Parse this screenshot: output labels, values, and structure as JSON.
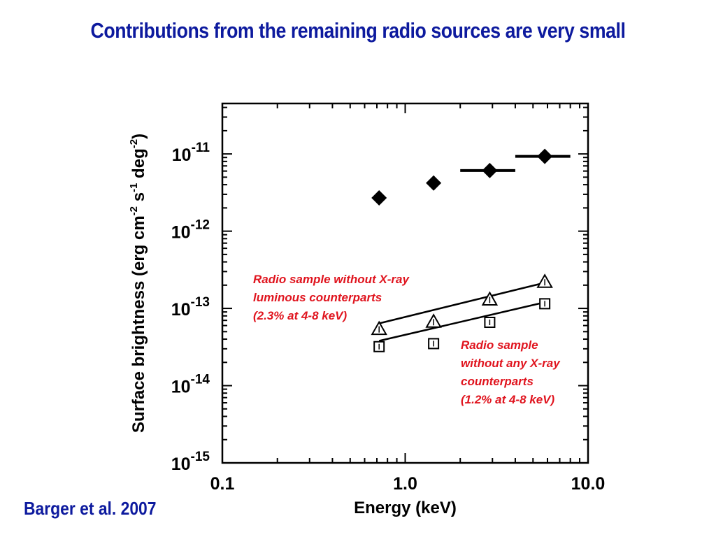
{
  "slide": {
    "title": "Contributions from the remaining radio sources are very small",
    "citation": "Barger et al. 2007",
    "title_color": "#0d1a9e",
    "annotation_color": "#e0141e"
  },
  "chart_data": {
    "type": "scatter",
    "title": "",
    "xlabel": "Energy (keV)",
    "ylabel_parts": [
      "Surface brightness (erg cm",
      "-2",
      " s",
      "-1",
      " deg",
      "-2",
      ")"
    ],
    "xscale": "log",
    "yscale": "log",
    "xlim": [
      0.1,
      10.0
    ],
    "ylim": [
      1e-15,
      4.5e-11
    ],
    "x_ticks": [
      "0.1",
      "1.0",
      "10.0"
    ],
    "y_ticks": [
      {
        "base": "10",
        "exp": "-11",
        "value": 1e-11
      },
      {
        "base": "10",
        "exp": "-12",
        "value": 1e-12
      },
      {
        "base": "10",
        "exp": "-13",
        "value": 1e-13
      },
      {
        "base": "10",
        "exp": "-14",
        "value": 1e-14
      },
      {
        "base": "10",
        "exp": "-15",
        "value": 1e-15
      }
    ],
    "grid": false,
    "series": [
      {
        "marker": "diamond",
        "points": [
          {
            "x": 0.72,
            "y": 2.7e-12
          },
          {
            "x": 1.43,
            "y": 4.2e-12
          },
          {
            "x": 2.9,
            "y": 6.1e-12,
            "xerr": [
              2.0,
              4.0
            ]
          },
          {
            "x": 5.8,
            "y": 9.3e-12,
            "xerr": [
              4.0,
              8.0
            ]
          }
        ]
      },
      {
        "marker": "triangle",
        "points": [
          {
            "x": 0.72,
            "y": 5.4e-14
          },
          {
            "x": 1.43,
            "y": 6.7e-14
          },
          {
            "x": 2.9,
            "y": 1.3e-13
          },
          {
            "x": 5.8,
            "y": 2.2e-13
          }
        ],
        "fit_line": [
          {
            "x": 0.72,
            "y": 6.4e-14
          },
          {
            "x": 5.8,
            "y": 2.15e-13
          }
        ]
      },
      {
        "marker": "square",
        "points": [
          {
            "x": 0.72,
            "y": 3.2e-14
          },
          {
            "x": 1.43,
            "y": 3.5e-14
          },
          {
            "x": 2.9,
            "y": 6.6e-14
          },
          {
            "x": 5.8,
            "y": 1.15e-13
          }
        ],
        "fit_line": [
          {
            "x": 0.72,
            "y": 3.8e-14
          },
          {
            "x": 5.8,
            "y": 1.2e-13
          }
        ]
      }
    ],
    "annotations": [
      {
        "lines": [
          "Radio sample without X-ray",
          "luminous counterparts",
          "(2.3% at 4-8 keV)"
        ]
      },
      {
        "lines": [
          "Radio sample",
          "without any X-ray",
          "counterparts",
          "(1.2% at 4-8 keV)"
        ]
      }
    ]
  }
}
